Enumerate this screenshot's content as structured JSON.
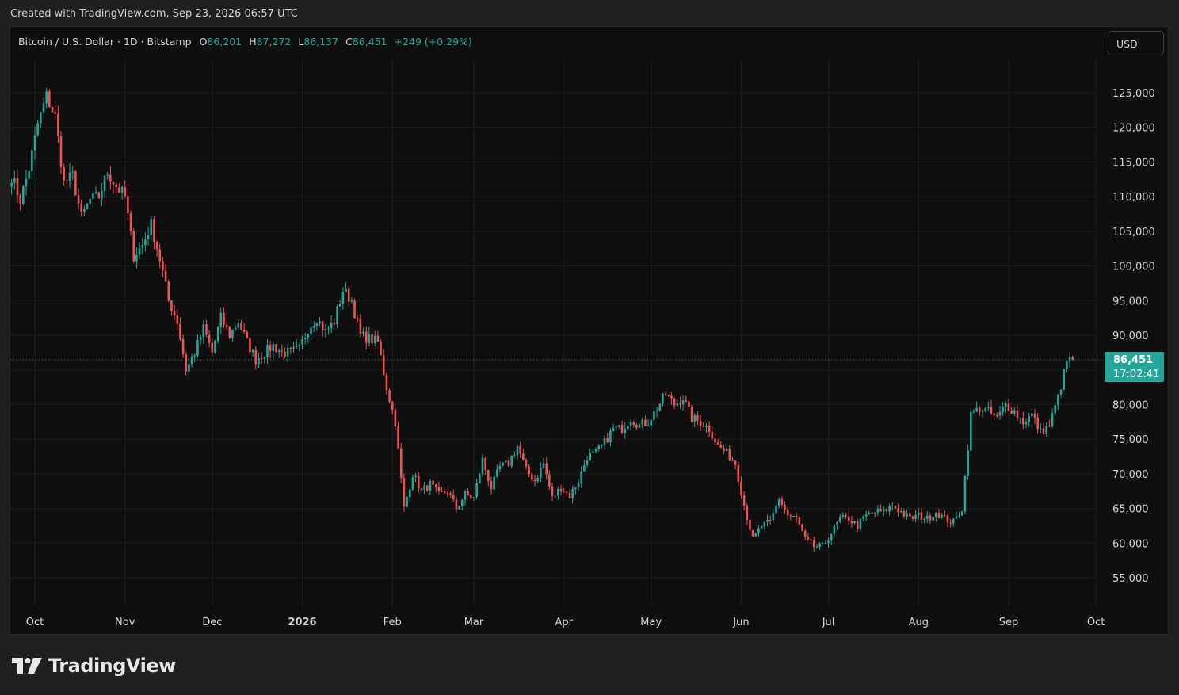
{
  "header": {
    "created_text": "Created with TradingView.com, Sep 23, 2026 06:57 UTC"
  },
  "legend": {
    "symbol": "Bitcoin / U.S. Dollar · 1D · Bitstamp",
    "open_label": "O",
    "open_value": "86,201",
    "high_label": "H",
    "high_value": "87,272",
    "low_label": "L",
    "low_value": "86,137",
    "close_label": "C",
    "close_value": "86,451",
    "change": "+249 (+0.29%)"
  },
  "currency_button": "USD",
  "price_tag": {
    "price": "86,451",
    "countdown": "17:02:41"
  },
  "brand": {
    "name": "TradingView"
  },
  "colors": {
    "up": "#26a69a",
    "down": "#ef5350",
    "background": "#0f0f0f",
    "grid": "#1e1e1e",
    "text": "#d1d4dc"
  },
  "chart_data": {
    "type": "candlestick",
    "ylim": [
      51000,
      131000
    ],
    "y_ticks": [
      55000,
      60000,
      65000,
      70000,
      75000,
      80000,
      85000,
      90000,
      95000,
      100000,
      105000,
      110000,
      115000,
      120000,
      125000
    ],
    "x_ticks": [
      "Oct",
      "Nov",
      "Dec",
      "2026",
      "Feb",
      "Mar",
      "Apr",
      "May",
      "Jun",
      "Jul",
      "Aug",
      "Sep",
      "Oct"
    ],
    "last_price": 86451,
    "grid": true,
    "closes_every_3_days": [
      {
        "date": "2025-09-23",
        "close": 113000
      },
      {
        "date": "2025-09-26",
        "close": 109500
      },
      {
        "date": "2025-09-29",
        "close": 114000
      },
      {
        "date": "2025-10-02",
        "close": 120500
      },
      {
        "date": "2025-10-05",
        "close": 124500
      },
      {
        "date": "2025-10-08",
        "close": 121500
      },
      {
        "date": "2025-10-11",
        "close": 112000
      },
      {
        "date": "2025-10-14",
        "close": 113000
      },
      {
        "date": "2025-10-17",
        "close": 107000
      },
      {
        "date": "2025-10-20",
        "close": 109500
      },
      {
        "date": "2025-10-23",
        "close": 110000
      },
      {
        "date": "2025-10-26",
        "close": 113500
      },
      {
        "date": "2025-10-29",
        "close": 111500
      },
      {
        "date": "2025-11-01",
        "close": 110000
      },
      {
        "date": "2025-11-04",
        "close": 101500
      },
      {
        "date": "2025-11-07",
        "close": 103000
      },
      {
        "date": "2025-11-10",
        "close": 106000
      },
      {
        "date": "2025-11-13",
        "close": 101000
      },
      {
        "date": "2025-11-16",
        "close": 95000
      },
      {
        "date": "2025-11-19",
        "close": 92000
      },
      {
        "date": "2025-11-22",
        "close": 85000
      },
      {
        "date": "2025-11-25",
        "close": 87500
      },
      {
        "date": "2025-11-28",
        "close": 91000
      },
      {
        "date": "2025-12-01",
        "close": 87500
      },
      {
        "date": "2025-12-04",
        "close": 92500
      },
      {
        "date": "2025-12-07",
        "close": 90000
      },
      {
        "date": "2025-12-10",
        "close": 92000
      },
      {
        "date": "2025-12-13",
        "close": 89000
      },
      {
        "date": "2025-12-16",
        "close": 86500
      },
      {
        "date": "2025-12-19",
        "close": 87500
      },
      {
        "date": "2025-12-22",
        "close": 88500
      },
      {
        "date": "2025-12-25",
        "close": 87500
      },
      {
        "date": "2025-12-28",
        "close": 87500
      },
      {
        "date": "2025-12-31",
        "close": 88000
      },
      {
        "date": "2026-01-03",
        "close": 91000
      },
      {
        "date": "2026-01-06",
        "close": 92500
      },
      {
        "date": "2026-01-09",
        "close": 90500
      },
      {
        "date": "2026-01-12",
        "close": 92000
      },
      {
        "date": "2026-01-15",
        "close": 96500
      },
      {
        "date": "2026-01-18",
        "close": 95000
      },
      {
        "date": "2026-01-21",
        "close": 90000
      },
      {
        "date": "2026-01-24",
        "close": 89500
      },
      {
        "date": "2026-01-27",
        "close": 89000
      },
      {
        "date": "2026-01-30",
        "close": 82500
      },
      {
        "date": "2026-02-02",
        "close": 77500
      },
      {
        "date": "2026-02-05",
        "close": 65000
      },
      {
        "date": "2026-02-08",
        "close": 70000
      },
      {
        "date": "2026-02-11",
        "close": 67500
      },
      {
        "date": "2026-02-14",
        "close": 68500
      },
      {
        "date": "2026-02-17",
        "close": 67000
      },
      {
        "date": "2026-02-20",
        "close": 67500
      },
      {
        "date": "2026-02-23",
        "close": 65000
      },
      {
        "date": "2026-02-26",
        "close": 67000
      },
      {
        "date": "2026-03-01",
        "close": 66500
      },
      {
        "date": "2026-03-04",
        "close": 72000
      },
      {
        "date": "2026-03-07",
        "close": 68000
      },
      {
        "date": "2026-03-10",
        "close": 71000
      },
      {
        "date": "2026-03-13",
        "close": 71500
      },
      {
        "date": "2026-03-16",
        "close": 74000
      },
      {
        "date": "2026-03-19",
        "close": 70500
      },
      {
        "date": "2026-03-22",
        "close": 69000
      },
      {
        "date": "2026-03-25",
        "close": 71500
      },
      {
        "date": "2026-03-28",
        "close": 66500
      },
      {
        "date": "2026-03-31",
        "close": 68000
      },
      {
        "date": "2026-04-03",
        "close": 66800
      },
      {
        "date": "2026-04-06",
        "close": 69000
      },
      {
        "date": "2026-04-09",
        "close": 72500
      },
      {
        "date": "2026-04-12",
        "close": 73000
      },
      {
        "date": "2026-04-15",
        "close": 74500
      },
      {
        "date": "2026-04-18",
        "close": 76500
      },
      {
        "date": "2026-04-21",
        "close": 76500
      },
      {
        "date": "2026-04-24",
        "close": 78000
      },
      {
        "date": "2026-04-27",
        "close": 77000
      },
      {
        "date": "2026-04-30",
        "close": 77500
      },
      {
        "date": "2026-05-03",
        "close": 79500
      },
      {
        "date": "2026-05-06",
        "close": 81500
      },
      {
        "date": "2026-05-09",
        "close": 80000
      },
      {
        "date": "2026-05-12",
        "close": 81000
      },
      {
        "date": "2026-05-15",
        "close": 78000
      },
      {
        "date": "2026-05-18",
        "close": 77500
      },
      {
        "date": "2026-05-21",
        "close": 76500
      },
      {
        "date": "2026-05-24",
        "close": 74000
      },
      {
        "date": "2026-05-27",
        "close": 73000
      },
      {
        "date": "2026-05-30",
        "close": 71500
      },
      {
        "date": "2026-06-02",
        "close": 65500
      },
      {
        "date": "2026-06-05",
        "close": 60500
      },
      {
        "date": "2026-06-08",
        "close": 62500
      },
      {
        "date": "2026-06-11",
        "close": 63000
      },
      {
        "date": "2026-06-14",
        "close": 66500
      },
      {
        "date": "2026-06-17",
        "close": 64000
      },
      {
        "date": "2026-06-20",
        "close": 63500
      },
      {
        "date": "2026-06-23",
        "close": 60500
      },
      {
        "date": "2026-06-26",
        "close": 59500
      },
      {
        "date": "2026-06-29",
        "close": 59500
      },
      {
        "date": "2026-07-02",
        "close": 61500
      },
      {
        "date": "2026-07-05",
        "close": 63500
      },
      {
        "date": "2026-07-08",
        "close": 63500
      },
      {
        "date": "2026-07-11",
        "close": 62500
      },
      {
        "date": "2026-07-14",
        "close": 64000
      },
      {
        "date": "2026-07-17",
        "close": 64500
      },
      {
        "date": "2026-07-20",
        "close": 64500
      },
      {
        "date": "2026-07-23",
        "close": 65500
      },
      {
        "date": "2026-07-26",
        "close": 64500
      },
      {
        "date": "2026-07-29",
        "close": 63500
      },
      {
        "date": "2026-08-01",
        "close": 64000
      },
      {
        "date": "2026-08-04",
        "close": 63500
      },
      {
        "date": "2026-08-07",
        "close": 64500
      },
      {
        "date": "2026-08-10",
        "close": 63500
      },
      {
        "date": "2026-08-13",
        "close": 63000
      },
      {
        "date": "2026-08-16",
        "close": 65000
      },
      {
        "date": "2026-08-19",
        "close": 78500
      },
      {
        "date": "2026-08-22",
        "close": 79500
      },
      {
        "date": "2026-08-25",
        "close": 79000
      },
      {
        "date": "2026-08-28",
        "close": 78000
      },
      {
        "date": "2026-08-31",
        "close": 80000
      },
      {
        "date": "2026-09-03",
        "close": 79000
      },
      {
        "date": "2026-09-06",
        "close": 77500
      },
      {
        "date": "2026-09-09",
        "close": 78500
      },
      {
        "date": "2026-09-12",
        "close": 76000
      },
      {
        "date": "2026-09-15",
        "close": 77000
      },
      {
        "date": "2026-09-18",
        "close": 81000
      },
      {
        "date": "2026-09-21",
        "close": 86200
      },
      {
        "date": "2026-09-23",
        "close": 86451
      }
    ]
  }
}
